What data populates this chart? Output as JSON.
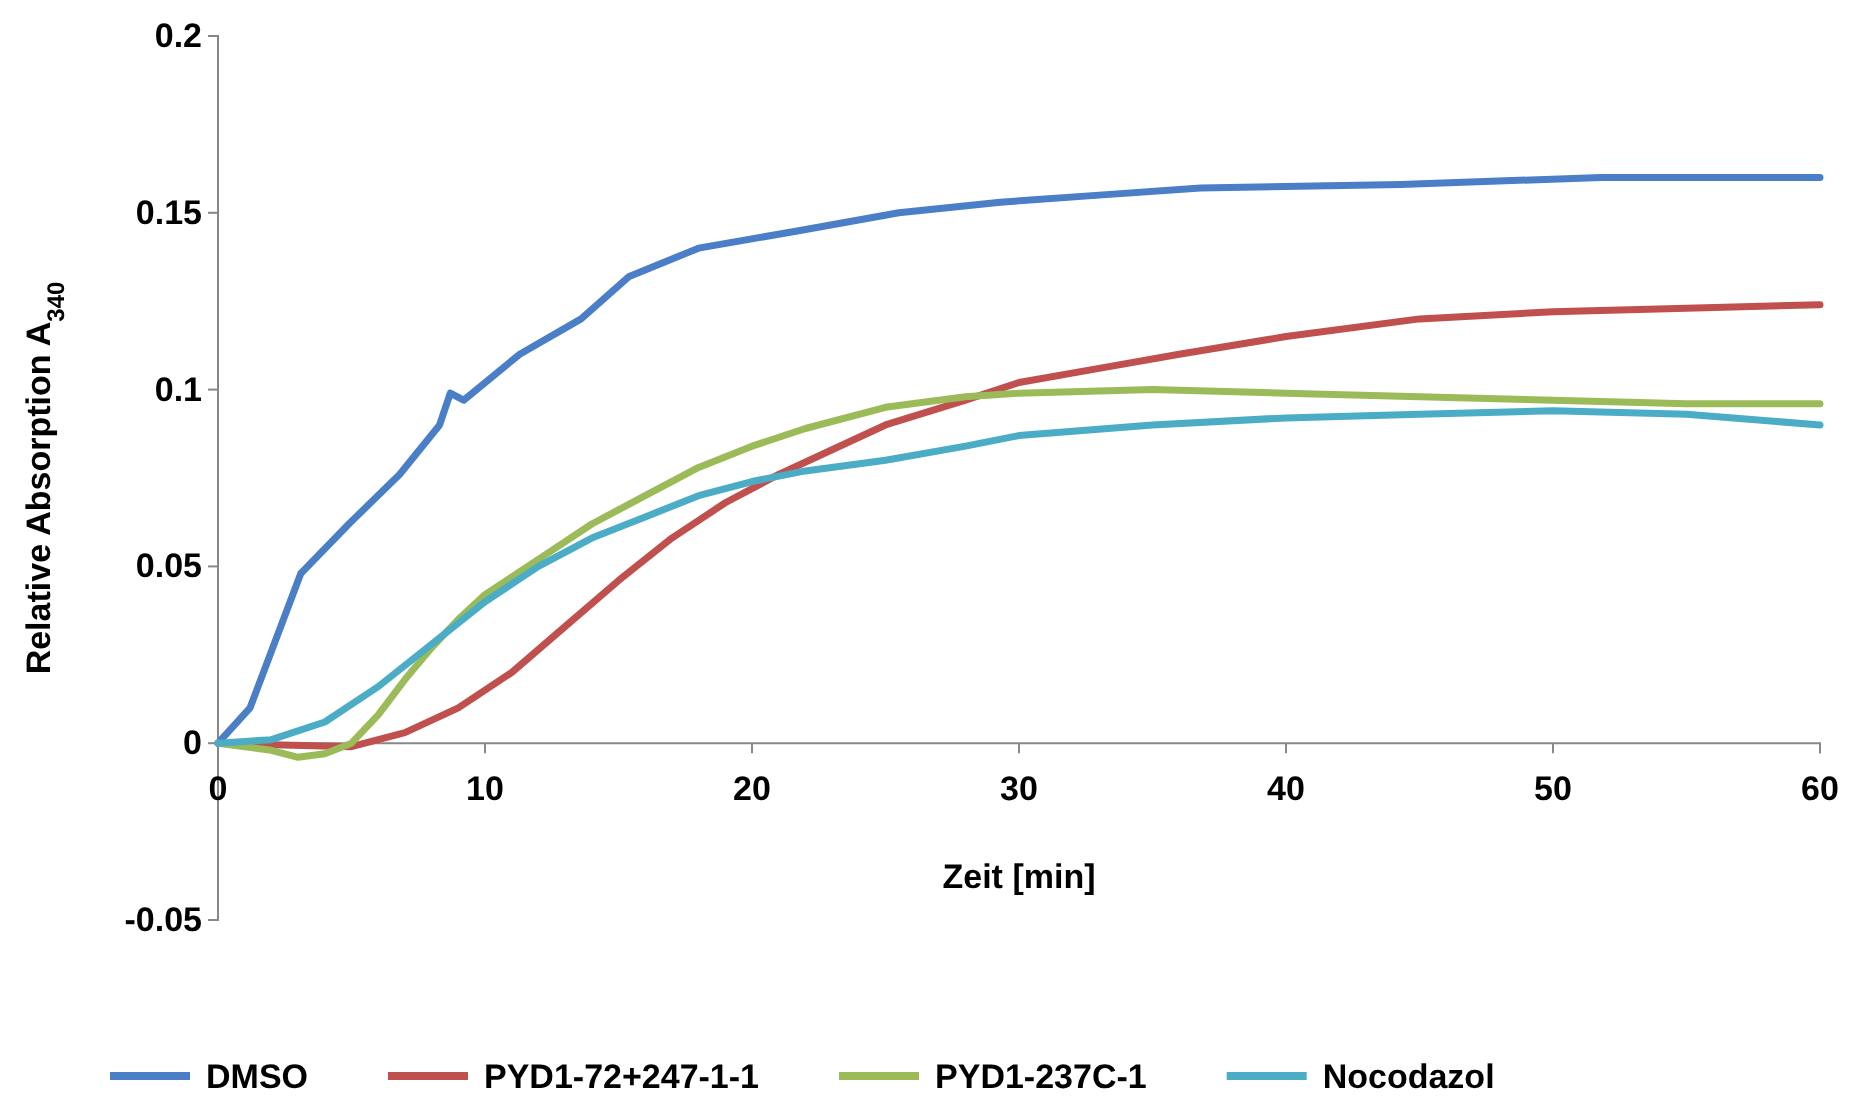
{
  "chart_data": {
    "type": "line",
    "xlabel": "Zeit [min]",
    "ylabel": "Relative Absorption A$_{340}$",
    "xlim": [
      0,
      60
    ],
    "xticks": [
      0,
      10,
      20,
      30,
      40,
      50,
      60
    ],
    "ylim": [
      -0.05,
      0.2
    ],
    "yticks": [
      -0.05,
      0,
      0.05,
      0.1,
      0.15,
      0.2
    ],
    "grid": false,
    "legend": "bottom",
    "marker": "none",
    "line_style": "solid",
    "series": [
      {
        "name": "DMSO",
        "color": "#4a7ec6",
        "x": [
          0,
          1.2,
          3.1,
          4.9,
          6.8,
          8.3,
          8.7,
          9.2,
          11.3,
          13.6,
          15.4,
          18,
          21.8,
          25.5,
          29.3,
          33,
          36.8,
          44.3,
          51.8,
          60
        ],
        "values": [
          0,
          0.01,
          0.048,
          0.062,
          0.076,
          0.09,
          0.099,
          0.097,
          0.11,
          0.12,
          0.132,
          0.14,
          0.145,
          0.15,
          0.153,
          0.155,
          0.157,
          0.158,
          0.16,
          0.16
        ]
      },
      {
        "name": "PYD1-72+247-1-1",
        "color": "#c0504d",
        "x": [
          0,
          5,
          7,
          9,
          11,
          13,
          15,
          17,
          19,
          21,
          23,
          25,
          28,
          30,
          33,
          36,
          40,
          45,
          50,
          55,
          60
        ],
        "values": [
          0,
          -0.001,
          0.003,
          0.01,
          0.02,
          0.033,
          0.046,
          0.058,
          0.068,
          0.076,
          0.083,
          0.09,
          0.097,
          0.102,
          0.106,
          0.11,
          0.115,
          0.12,
          0.122,
          0.123,
          0.124
        ]
      },
      {
        "name": "PYD1-237C-1",
        "color": "#9bbb59",
        "x": [
          0,
          2,
          3,
          4,
          5,
          6,
          7,
          8,
          9,
          10,
          12,
          14,
          16,
          18,
          20,
          22,
          25,
          28,
          30,
          35,
          40,
          45,
          50,
          55,
          60
        ],
        "values": [
          0,
          -0.002,
          -0.004,
          -0.003,
          0,
          0.008,
          0.018,
          0.027,
          0.035,
          0.042,
          0.052,
          0.062,
          0.07,
          0.078,
          0.084,
          0.089,
          0.095,
          0.098,
          0.099,
          0.1,
          0.099,
          0.098,
          0.097,
          0.096,
          0.096
        ]
      },
      {
        "name": "Nocodazol",
        "color": "#4bacc6",
        "x": [
          0,
          2,
          4,
          6,
          8,
          10,
          12,
          14,
          16,
          18,
          20,
          22,
          25,
          28,
          30,
          35,
          40,
          45,
          50,
          55,
          60
        ],
        "values": [
          0,
          0.001,
          0.006,
          0.016,
          0.028,
          0.04,
          0.05,
          0.058,
          0.064,
          0.07,
          0.074,
          0.077,
          0.08,
          0.084,
          0.087,
          0.09,
          0.092,
          0.093,
          0.094,
          0.093,
          0.09
        ]
      }
    ]
  }
}
